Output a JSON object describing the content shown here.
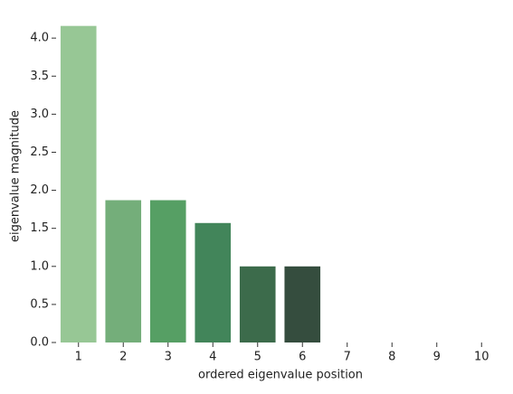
{
  "chart_data": {
    "type": "bar",
    "x_label": "ordered eigenvalue position",
    "y_label": "eigenvalue magnitude",
    "categories": [
      "1",
      "2",
      "3",
      "4",
      "5",
      "6",
      "7",
      "8",
      "9",
      "10"
    ],
    "values": [
      4.16,
      1.87,
      1.87,
      1.57,
      1.0,
      1.0,
      0,
      0,
      0,
      0
    ],
    "colors": [
      "#97c795",
      "#74ae7a",
      "#569f64",
      "#42855a",
      "#3c6b4b",
      "#354d3e",
      "#30403a",
      "#2c3a33",
      "#28342e",
      "#242e29"
    ],
    "ylim": [
      0,
      4.37
    ],
    "yticks": [
      {
        "value": 0,
        "label": "0.0"
      },
      0.5,
      {
        "value": 1,
        "label": "1.0"
      },
      1.5,
      {
        "value": 2,
        "label": "2.0"
      },
      2.5,
      {
        "value": 3,
        "label": "3.0"
      },
      3.5,
      {
        "value": 4,
        "label": "4.0"
      }
    ],
    "grid": false
  }
}
